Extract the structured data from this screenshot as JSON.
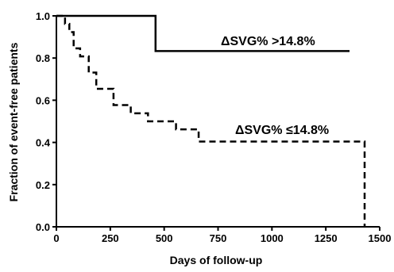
{
  "chart_data": {
    "type": "line",
    "title": "",
    "xlabel": "Days of follow-up",
    "ylabel": "Fraction of event-free patients",
    "xlim": [
      0,
      1500
    ],
    "ylim": [
      0,
      1.0
    ],
    "xticks": [
      "0",
      "250",
      "500",
      "750",
      "1000",
      "1250",
      "1500"
    ],
    "yticks": [
      "0.0",
      "0.2",
      "0.4",
      "0.6",
      "0.8",
      "1.0"
    ],
    "grid": false,
    "step": true,
    "series": [
      {
        "name": "ΔSVG% >14.8%",
        "style": "solid",
        "color": "#000000",
        "x": [
          0,
          460,
          1360
        ],
        "y": [
          1.0,
          0.833,
          0.833
        ]
      },
      {
        "name": "ΔSVG% ≤14.8%",
        "style": "dashed",
        "color": "#000000",
        "x": [
          0,
          40,
          60,
          80,
          110,
          150,
          185,
          265,
          345,
          425,
          555,
          650,
          660,
          1430
        ],
        "y": [
          1.0,
          0.962,
          0.923,
          0.846,
          0.808,
          0.731,
          0.654,
          0.577,
          0.538,
          0.5,
          0.462,
          0.462,
          0.404,
          0.0
        ]
      }
    ]
  }
}
